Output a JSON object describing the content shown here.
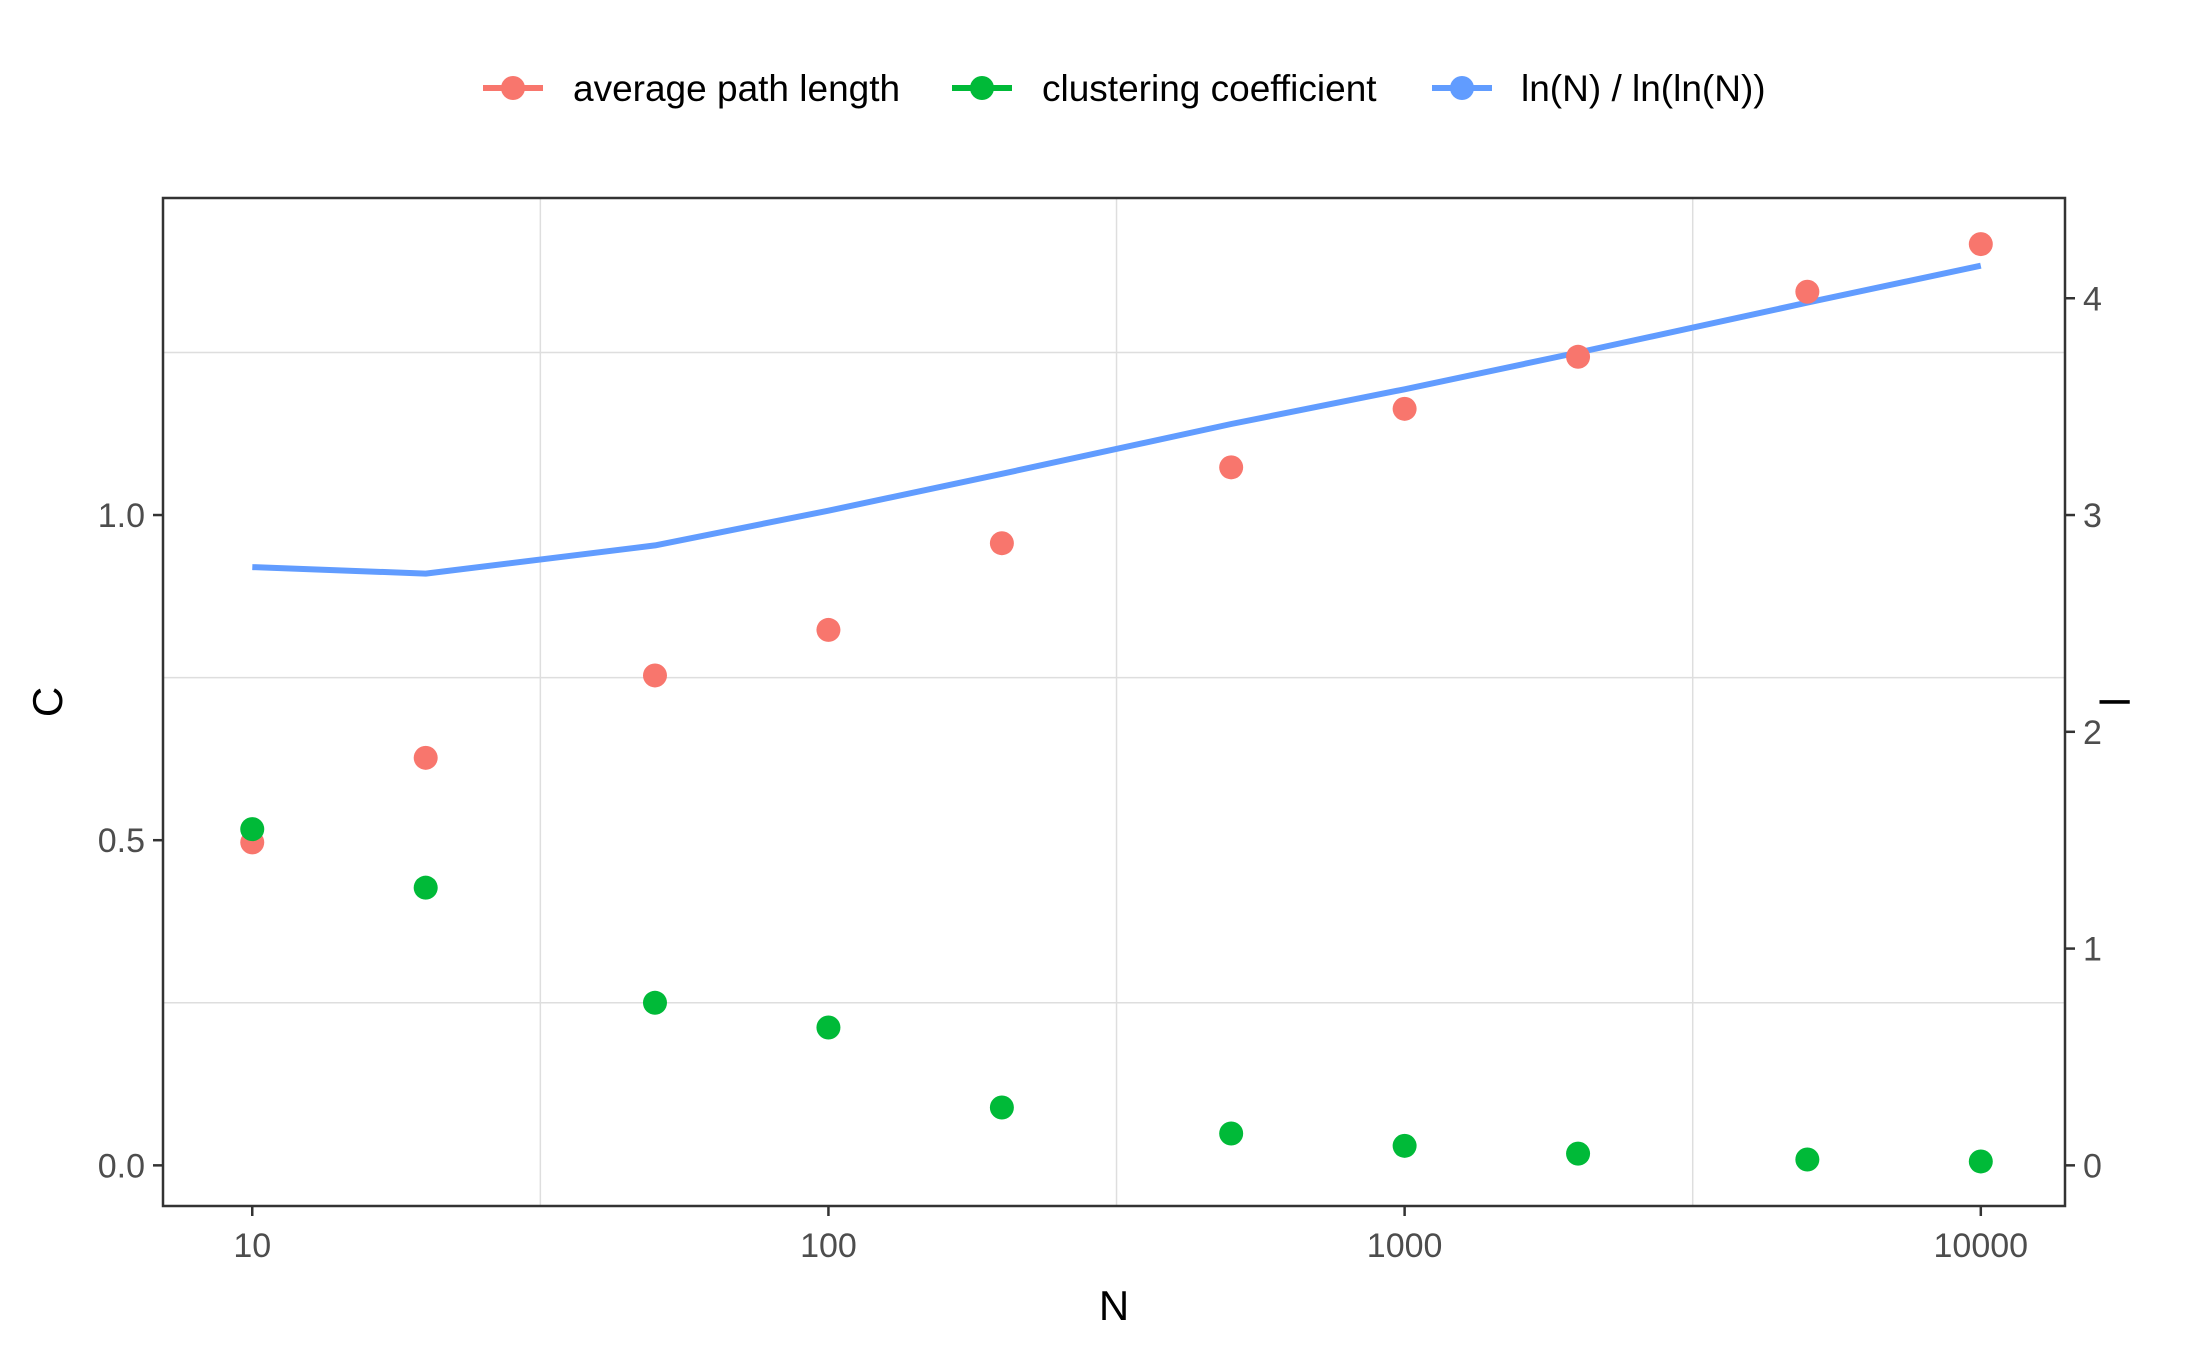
{
  "chart_data": {
    "type": "scatter",
    "title": "",
    "xlabel": "N",
    "ylabel_left": "C",
    "ylabel_right": "l",
    "x_scale": "log10",
    "xlim": [
      7,
      14000
    ],
    "x_ticks": [
      10,
      100,
      1000,
      10000
    ],
    "x_tick_labels": [
      "10",
      "100",
      "1000",
      "10000"
    ],
    "ylim_left": [
      -0.0625,
      1.4875
    ],
    "y_ticks_left": [
      0.0,
      0.5,
      1.0
    ],
    "y_tick_labels_left": [
      "0.0",
      "0.5",
      "1.0"
    ],
    "ylim_right": [
      -0.1875,
      4.4625
    ],
    "y_ticks_right": [
      0,
      1,
      2,
      3,
      4
    ],
    "y_tick_labels_right": [
      "0",
      "1",
      "2",
      "3",
      "4"
    ],
    "grid": true,
    "legend_position": "top",
    "x": [
      10,
      20,
      50,
      100,
      200,
      500,
      1000,
      2000,
      5000,
      10000
    ],
    "series": [
      {
        "name": "average path length",
        "type": "points",
        "axis": "right",
        "color": "#F8766D",
        "values": [
          1.49,
          1.88,
          2.26,
          2.47,
          2.87,
          3.22,
          3.49,
          3.73,
          4.03,
          4.25
        ]
      },
      {
        "name": "clustering coefficient",
        "type": "points",
        "axis": "left",
        "color": "#00BA38",
        "values": [
          0.517,
          0.427,
          0.25,
          0.212,
          0.089,
          0.049,
          0.03,
          0.018,
          0.009,
          0.006
        ]
      },
      {
        "name": "ln(N) / ln(ln(N))",
        "type": "line",
        "axis": "right",
        "color": "#619CFF",
        "values": [
          2.76,
          2.73,
          2.86,
          3.02,
          3.19,
          3.42,
          3.58,
          3.75,
          3.98,
          4.15
        ]
      }
    ]
  }
}
